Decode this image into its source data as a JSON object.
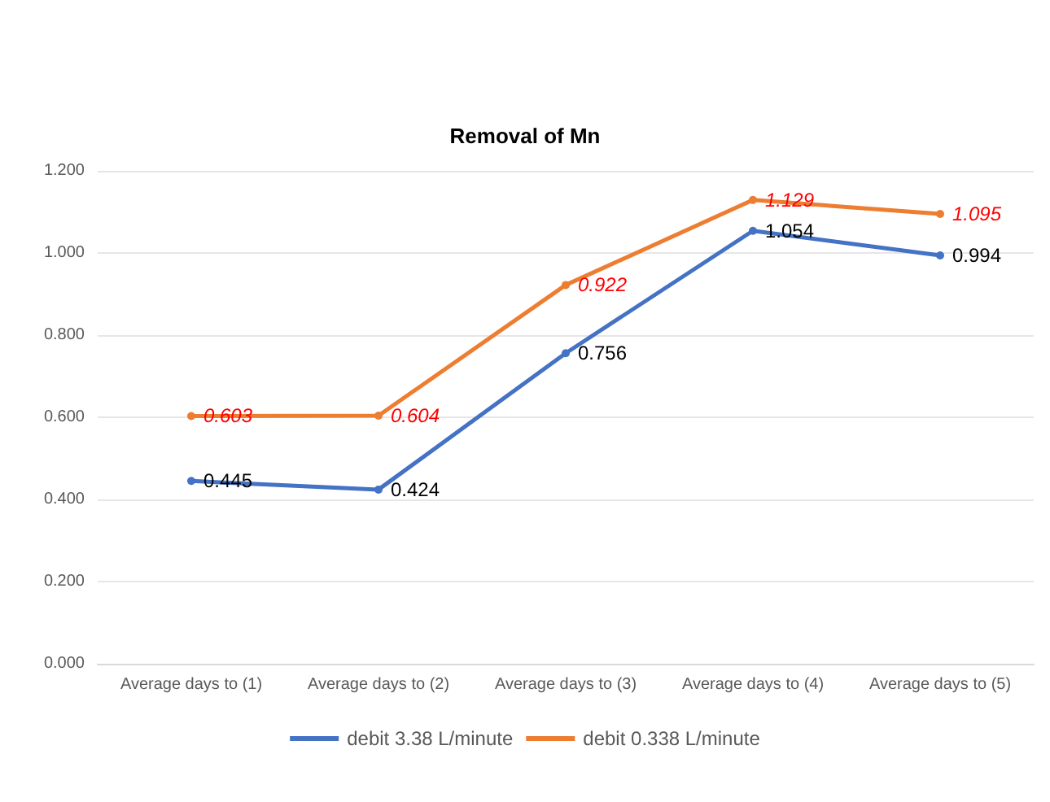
{
  "chart_data": {
    "type": "line",
    "title": "Removal of Mn",
    "categories": [
      "Average days to (1)",
      "Average days to (2)",
      "Average days to (3)",
      "Average days to (4)",
      "Average days to (5)"
    ],
    "series": [
      {
        "name": "debit 3.38 L/minute",
        "color": "#4472c4",
        "values": [
          0.445,
          0.424,
          0.756,
          1.054,
          0.994
        ]
      },
      {
        "name": "debit 0.338 L/minute",
        "color": "#ed7d31",
        "values": [
          0.603,
          0.604,
          0.922,
          1.129,
          1.095
        ]
      }
    ],
    "ylim": [
      0,
      1.2
    ],
    "yticks": [
      {
        "value": 0,
        "label": "0.000"
      },
      {
        "value": 0.2,
        "label": "0.200"
      },
      {
        "value": 0.4,
        "label": "0.400"
      },
      {
        "value": 0.6,
        "label": "0.600"
      },
      {
        "value": 0.8,
        "label": "0.800"
      },
      {
        "value": 1,
        "label": "1.000"
      },
      {
        "value": 1.2,
        "label": "1.200"
      }
    ],
    "grid": "y",
    "legend": "bottom",
    "marker": "circle",
    "line_style": "solid",
    "data_labels": true
  }
}
